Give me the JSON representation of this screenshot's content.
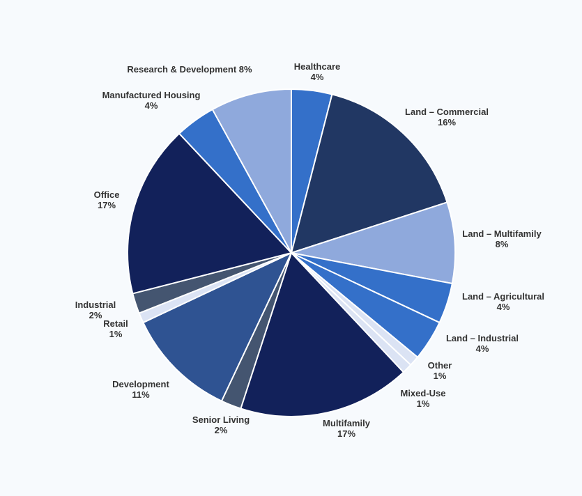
{
  "chart_data": {
    "type": "pie",
    "title": "",
    "slices": [
      {
        "name": "Healthcare",
        "value": 4,
        "label": "4%",
        "color": "#3470c9"
      },
      {
        "name": "Land – Commercial",
        "value": 16,
        "label": "16%",
        "color": "#213763"
      },
      {
        "name": "Land – Multifamily",
        "value": 8,
        "label": "8%",
        "color": "#8fa9dc"
      },
      {
        "name": "Land – Agricultural",
        "value": 4,
        "label": "4%",
        "color": "#3470c9"
      },
      {
        "name": "Land – Industrial",
        "value": 4,
        "label": "4%",
        "color": "#3470c9"
      },
      {
        "name": "Other",
        "value": 1,
        "label": "1%",
        "color": "#dbe3f4"
      },
      {
        "name": "Mixed-Use",
        "value": 1,
        "label": "1%",
        "color": "#dbe3f4"
      },
      {
        "name": "Multifamily",
        "value": 17,
        "label": "17%",
        "color": "#12215a"
      },
      {
        "name": "Senior Living",
        "value": 2,
        "label": "2%",
        "color": "#445570"
      },
      {
        "name": "Development",
        "value": 11,
        "label": "11%",
        "color": "#2f5392"
      },
      {
        "name": "Retail",
        "value": 1,
        "label": "1%",
        "color": "#dbe3f4"
      },
      {
        "name": "Industrial",
        "value": 2,
        "label": "2%",
        "color": "#445570"
      },
      {
        "name": "Office",
        "value": 17,
        "label": "17%",
        "color": "#12215a"
      },
      {
        "name": "Manufactured Housing",
        "value": 4,
        "label": "4%",
        "color": "#3470c9"
      },
      {
        "name": "Research & Development",
        "value": 8,
        "label": "8%",
        "color": "#8fa9dc"
      }
    ]
  }
}
